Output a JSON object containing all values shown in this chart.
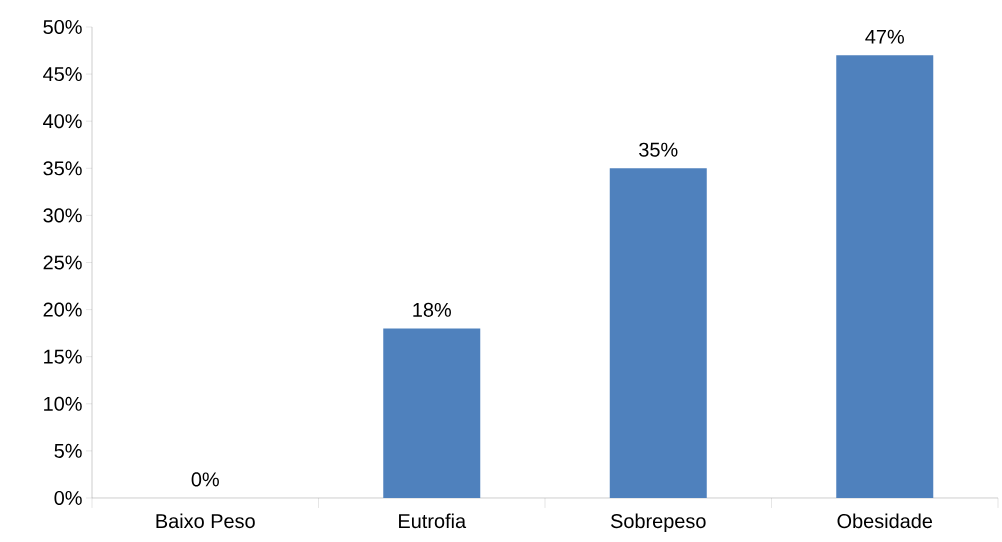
{
  "chart_data": {
    "type": "bar",
    "categories": [
      "Baixo Peso",
      "Eutrofia",
      "Sobrepeso",
      "Obesidade"
    ],
    "values": [
      0,
      18,
      35,
      47
    ],
    "value_labels": [
      "0%",
      "18%",
      "35%",
      "47%"
    ],
    "color": "#4f81bd",
    "ylim": [
      0,
      50
    ],
    "yticks": [
      {
        "value": 0,
        "label": "0%"
      },
      {
        "value": 5,
        "label": "5%"
      },
      {
        "value": 10,
        "label": "10%"
      },
      {
        "value": 15,
        "label": "15%"
      },
      {
        "value": 20,
        "label": "20%"
      },
      {
        "value": 25,
        "label": "25%"
      },
      {
        "value": 30,
        "label": "30%"
      },
      {
        "value": 35,
        "label": "35%"
      },
      {
        "value": 40,
        "label": "40%"
      },
      {
        "value": 45,
        "label": "45%"
      },
      {
        "value": 50,
        "label": "50%"
      }
    ]
  }
}
